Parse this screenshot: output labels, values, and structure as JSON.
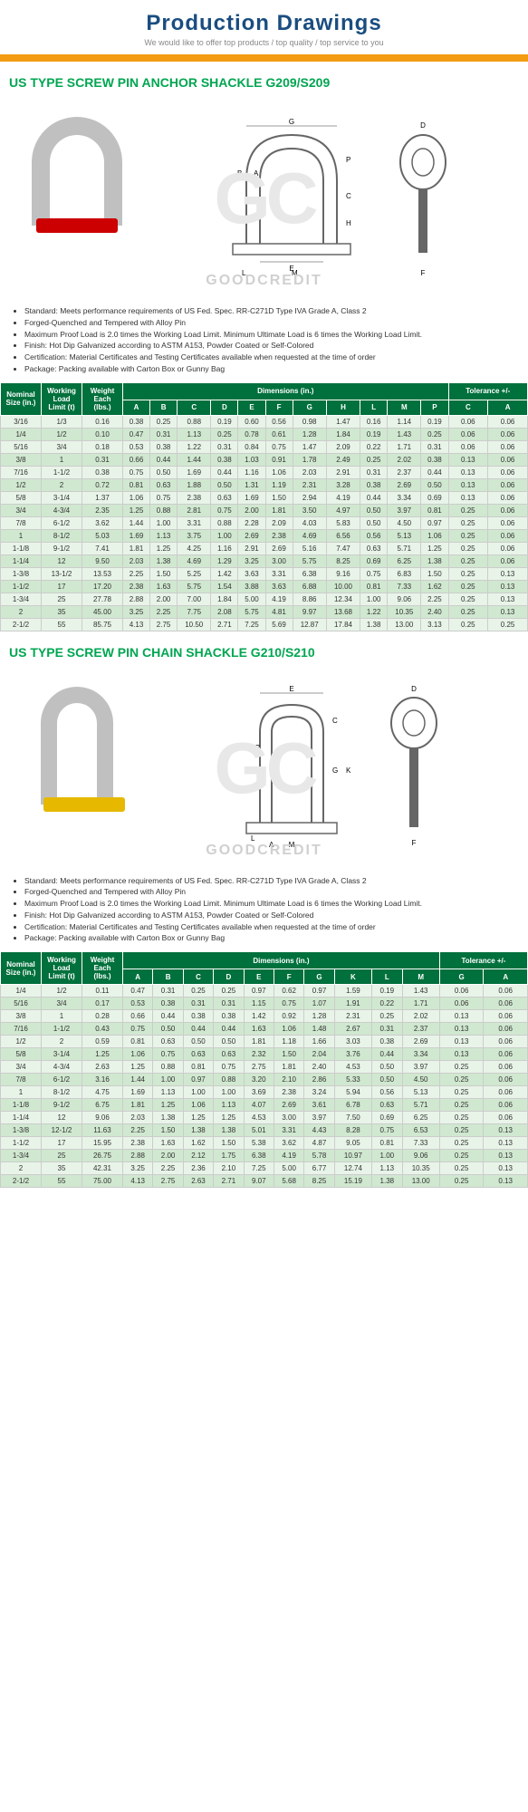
{
  "header": {
    "title": "Production Drawings",
    "subtitle": "We would like to offer top products / top quality / top service to you"
  },
  "watermark": {
    "bg": "GC",
    "text": "GOODCREDIT"
  },
  "section1": {
    "title": "US TYPE SCREW PIN ANCHOR SHACKLE G209/S209",
    "bullets": [
      "Standard: Meets performance requirements of US Fed. Spec. RR-C271D Type IVA Grade A, Class 2",
      "Forged-Quenched and Tempered with Alloy Pin",
      "Maximum Proof Load is 2.0 times the Working Load Limit. Minimum Ultimate Load is 6 times the Working Load Limit.",
      "Finish: Hot Dip Galvanized according to ASTM A153, Powder Coated or Self-Colored",
      "Certification: Material Certificates and Testing Certificates available when requested at the time of order",
      "Package: Packing available with Carton Box or Gunny Bag"
    ],
    "headers": {
      "nominal": "Nominal Size (in.)",
      "wll": "Working Load Limit (t)",
      "weight": "Weight Each (lbs.)",
      "dims": "Dimensions (in.)",
      "tol": "Tolerance +/-"
    },
    "dimcols": [
      "A",
      "B",
      "C",
      "D",
      "E",
      "F",
      "G",
      "H",
      "L",
      "M",
      "P"
    ],
    "tolcols": [
      "C",
      "A"
    ],
    "rows": [
      [
        "3/16",
        "1/3",
        "0.16",
        "0.38",
        "0.25",
        "0.88",
        "0.19",
        "0.60",
        "0.56",
        "0.98",
        "1.47",
        "0.16",
        "1.14",
        "0.19",
        "0.06",
        "0.06"
      ],
      [
        "1/4",
        "1/2",
        "0.10",
        "0.47",
        "0.31",
        "1.13",
        "0.25",
        "0.78",
        "0.61",
        "1.28",
        "1.84",
        "0.19",
        "1.43",
        "0.25",
        "0.06",
        "0.06"
      ],
      [
        "5/16",
        "3/4",
        "0.18",
        "0.53",
        "0.38",
        "1.22",
        "0.31",
        "0.84",
        "0.75",
        "1.47",
        "2.09",
        "0.22",
        "1.71",
        "0.31",
        "0.06",
        "0.06"
      ],
      [
        "3/8",
        "1",
        "0.31",
        "0.66",
        "0.44",
        "1.44",
        "0.38",
        "1.03",
        "0.91",
        "1.78",
        "2.49",
        "0.25",
        "2.02",
        "0.38",
        "0.13",
        "0.06"
      ],
      [
        "7/16",
        "1-1/2",
        "0.38",
        "0.75",
        "0.50",
        "1.69",
        "0.44",
        "1.16",
        "1.06",
        "2.03",
        "2.91",
        "0.31",
        "2.37",
        "0.44",
        "0.13",
        "0.06"
      ],
      [
        "1/2",
        "2",
        "0.72",
        "0.81",
        "0.63",
        "1.88",
        "0.50",
        "1.31",
        "1.19",
        "2.31",
        "3.28",
        "0.38",
        "2.69",
        "0.50",
        "0.13",
        "0.06"
      ],
      [
        "5/8",
        "3-1/4",
        "1.37",
        "1.06",
        "0.75",
        "2.38",
        "0.63",
        "1.69",
        "1.50",
        "2.94",
        "4.19",
        "0.44",
        "3.34",
        "0.69",
        "0.13",
        "0.06"
      ],
      [
        "3/4",
        "4-3/4",
        "2.35",
        "1.25",
        "0.88",
        "2.81",
        "0.75",
        "2.00",
        "1.81",
        "3.50",
        "4.97",
        "0.50",
        "3.97",
        "0.81",
        "0.25",
        "0.06"
      ],
      [
        "7/8",
        "6-1/2",
        "3.62",
        "1.44",
        "1.00",
        "3.31",
        "0.88",
        "2.28",
        "2.09",
        "4.03",
        "5.83",
        "0.50",
        "4.50",
        "0.97",
        "0.25",
        "0.06"
      ],
      [
        "1",
        "8-1/2",
        "5.03",
        "1.69",
        "1.13",
        "3.75",
        "1.00",
        "2.69",
        "2.38",
        "4.69",
        "6.56",
        "0.56",
        "5.13",
        "1.06",
        "0.25",
        "0.06"
      ],
      [
        "1-1/8",
        "9-1/2",
        "7.41",
        "1.81",
        "1.25",
        "4.25",
        "1.16",
        "2.91",
        "2.69",
        "5.16",
        "7.47",
        "0.63",
        "5.71",
        "1.25",
        "0.25",
        "0.06"
      ],
      [
        "1-1/4",
        "12",
        "9.50",
        "2.03",
        "1.38",
        "4.69",
        "1.29",
        "3.25",
        "3.00",
        "5.75",
        "8.25",
        "0.69",
        "6.25",
        "1.38",
        "0.25",
        "0.06"
      ],
      [
        "1-3/8",
        "13-1/2",
        "13.53",
        "2.25",
        "1.50",
        "5.25",
        "1.42",
        "3.63",
        "3.31",
        "6.38",
        "9.16",
        "0.75",
        "6.83",
        "1.50",
        "0.25",
        "0.13"
      ],
      [
        "1-1/2",
        "17",
        "17.20",
        "2.38",
        "1.63",
        "5.75",
        "1.54",
        "3.88",
        "3.63",
        "6.88",
        "10.00",
        "0.81",
        "7.33",
        "1.62",
        "0.25",
        "0.13"
      ],
      [
        "1-3/4",
        "25",
        "27.78",
        "2.88",
        "2.00",
        "7.00",
        "1.84",
        "5.00",
        "4.19",
        "8.86",
        "12.34",
        "1.00",
        "9.06",
        "2.25",
        "0.25",
        "0.13"
      ],
      [
        "2",
        "35",
        "45.00",
        "3.25",
        "2.25",
        "7.75",
        "2.08",
        "5.75",
        "4.81",
        "9.97",
        "13.68",
        "1.22",
        "10.35",
        "2.40",
        "0.25",
        "0.13"
      ],
      [
        "2-1/2",
        "55",
        "85.75",
        "4.13",
        "2.75",
        "10.50",
        "2.71",
        "7.25",
        "5.69",
        "12.87",
        "17.84",
        "1.38",
        "13.00",
        "3.13",
        "0.25",
        "0.25"
      ]
    ]
  },
  "section2": {
    "title": "US TYPE SCREW PIN CHAIN SHACKLE G210/S210",
    "bullets": [
      "Standard: Meets performance requirements of US Fed. Spec. RR-C271D Type IVA Grade A, Class 2",
      "Forged-Quenched and Tempered with Alloy Pin",
      "Maximum Proof Load is 2.0 times the Working Load Limit. Minimum Ultimate Load is 6 times the Working Load Limit.",
      "Finish: Hot Dip Galvanized according to ASTM A153, Powder Coated or Self-Colored",
      "Certification: Material Certificates and Testing Certificates available when requested at the time of order",
      "Package: Packing available with Carton Box or Gunny Bag"
    ],
    "headers": {
      "nominal": "Nominal Size (in.)",
      "wll": "Working Load Limit (t)",
      "weight": "Weight Each (lbs.)",
      "dims": "Dimensions (in.)",
      "tol": "Tolerance +/-"
    },
    "dimcols": [
      "A",
      "B",
      "C",
      "D",
      "E",
      "F",
      "G",
      "K",
      "L",
      "M"
    ],
    "tolcols": [
      "G",
      "A"
    ],
    "rows": [
      [
        "1/4",
        "1/2",
        "0.11",
        "0.47",
        "0.31",
        "0.25",
        "0.25",
        "0.97",
        "0.62",
        "0.97",
        "1.59",
        "0.19",
        "1.43",
        "0.06",
        "0.06"
      ],
      [
        "5/16",
        "3/4",
        "0.17",
        "0.53",
        "0.38",
        "0.31",
        "0.31",
        "1.15",
        "0.75",
        "1.07",
        "1.91",
        "0.22",
        "1.71",
        "0.06",
        "0.06"
      ],
      [
        "3/8",
        "1",
        "0.28",
        "0.66",
        "0.44",
        "0.38",
        "0.38",
        "1.42",
        "0.92",
        "1.28",
        "2.31",
        "0.25",
        "2.02",
        "0.13",
        "0.06"
      ],
      [
        "7/16",
        "1-1/2",
        "0.43",
        "0.75",
        "0.50",
        "0.44",
        "0.44",
        "1.63",
        "1.06",
        "1.48",
        "2.67",
        "0.31",
        "2.37",
        "0.13",
        "0.06"
      ],
      [
        "1/2",
        "2",
        "0.59",
        "0.81",
        "0.63",
        "0.50",
        "0.50",
        "1.81",
        "1.18",
        "1.66",
        "3.03",
        "0.38",
        "2.69",
        "0.13",
        "0.06"
      ],
      [
        "5/8",
        "3-1/4",
        "1.25",
        "1.06",
        "0.75",
        "0.63",
        "0.63",
        "2.32",
        "1.50",
        "2.04",
        "3.76",
        "0.44",
        "3.34",
        "0.13",
        "0.06"
      ],
      [
        "3/4",
        "4-3/4",
        "2.63",
        "1.25",
        "0.88",
        "0.81",
        "0.75",
        "2.75",
        "1.81",
        "2.40",
        "4.53",
        "0.50",
        "3.97",
        "0.25",
        "0.06"
      ],
      [
        "7/8",
        "6-1/2",
        "3.16",
        "1.44",
        "1.00",
        "0.97",
        "0.88",
        "3.20",
        "2.10",
        "2.86",
        "5.33",
        "0.50",
        "4.50",
        "0.25",
        "0.06"
      ],
      [
        "1",
        "8-1/2",
        "4.75",
        "1.69",
        "1.13",
        "1.00",
        "1.00",
        "3.69",
        "2.38",
        "3.24",
        "5.94",
        "0.56",
        "5.13",
        "0.25",
        "0.06"
      ],
      [
        "1-1/8",
        "9-1/2",
        "6.75",
        "1.81",
        "1.25",
        "1.06",
        "1.13",
        "4.07",
        "2.69",
        "3.61",
        "6.78",
        "0.63",
        "5.71",
        "0.25",
        "0.06"
      ],
      [
        "1-1/4",
        "12",
        "9.06",
        "2.03",
        "1.38",
        "1.25",
        "1.25",
        "4.53",
        "3.00",
        "3.97",
        "7.50",
        "0.69",
        "6.25",
        "0.25",
        "0.06"
      ],
      [
        "1-3/8",
        "12-1/2",
        "11.63",
        "2.25",
        "1.50",
        "1.38",
        "1.38",
        "5.01",
        "3.31",
        "4.43",
        "8.28",
        "0.75",
        "6.53",
        "0.25",
        "0.13"
      ],
      [
        "1-1/2",
        "17",
        "15.95",
        "2.38",
        "1.63",
        "1.62",
        "1.50",
        "5.38",
        "3.62",
        "4.87",
        "9.05",
        "0.81",
        "7.33",
        "0.25",
        "0.13"
      ],
      [
        "1-3/4",
        "25",
        "26.75",
        "2.88",
        "2.00",
        "2.12",
        "1.75",
        "6.38",
        "4.19",
        "5.78",
        "10.97",
        "1.00",
        "9.06",
        "0.25",
        "0.13"
      ],
      [
        "2",
        "35",
        "42.31",
        "3.25",
        "2.25",
        "2.36",
        "2.10",
        "7.25",
        "5.00",
        "6.77",
        "12.74",
        "1.13",
        "10.35",
        "0.25",
        "0.13"
      ],
      [
        "2-1/2",
        "55",
        "75.00",
        "4.13",
        "2.75",
        "2.63",
        "2.71",
        "9.07",
        "5.68",
        "8.25",
        "15.19",
        "1.38",
        "13.00",
        "0.25",
        "0.13"
      ]
    ]
  }
}
